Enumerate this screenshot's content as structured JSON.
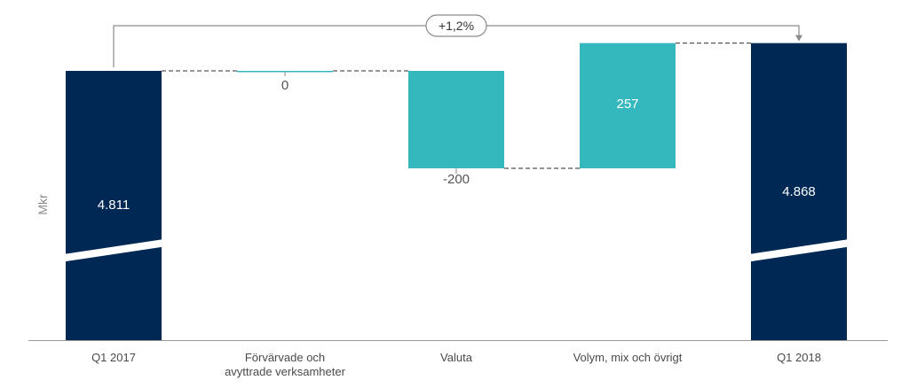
{
  "chart_data": {
    "type": "waterfall",
    "ylabel": "Mkr",
    "categories": [
      "Q1 2017",
      "Förvärvade och avyttrade verksamheter",
      "Valuta",
      "Volym, mix och övrigt",
      "Q1 2018"
    ],
    "category_lines": [
      [
        "Q1 2017"
      ],
      [
        "Förvärvade och",
        "avyttrade verksamheter"
      ],
      [
        "Valuta"
      ],
      [
        "Volym, mix och övrigt"
      ],
      [
        "Q1 2018"
      ]
    ],
    "values": [
      4811,
      0,
      -200,
      257,
      4868
    ],
    "value_labels": [
      "4.811",
      "0",
      "-200",
      "257",
      "4.868"
    ],
    "kinds": [
      "total",
      "delta",
      "delta",
      "delta",
      "total"
    ],
    "axis_break": true,
    "change_label": "+1,2%",
    "grid": false,
    "colors": {
      "total": "#002855",
      "delta": "#35b8bd",
      "connector": "#555555",
      "axis": "#999999",
      "bracket": "#8a8a8a"
    }
  }
}
